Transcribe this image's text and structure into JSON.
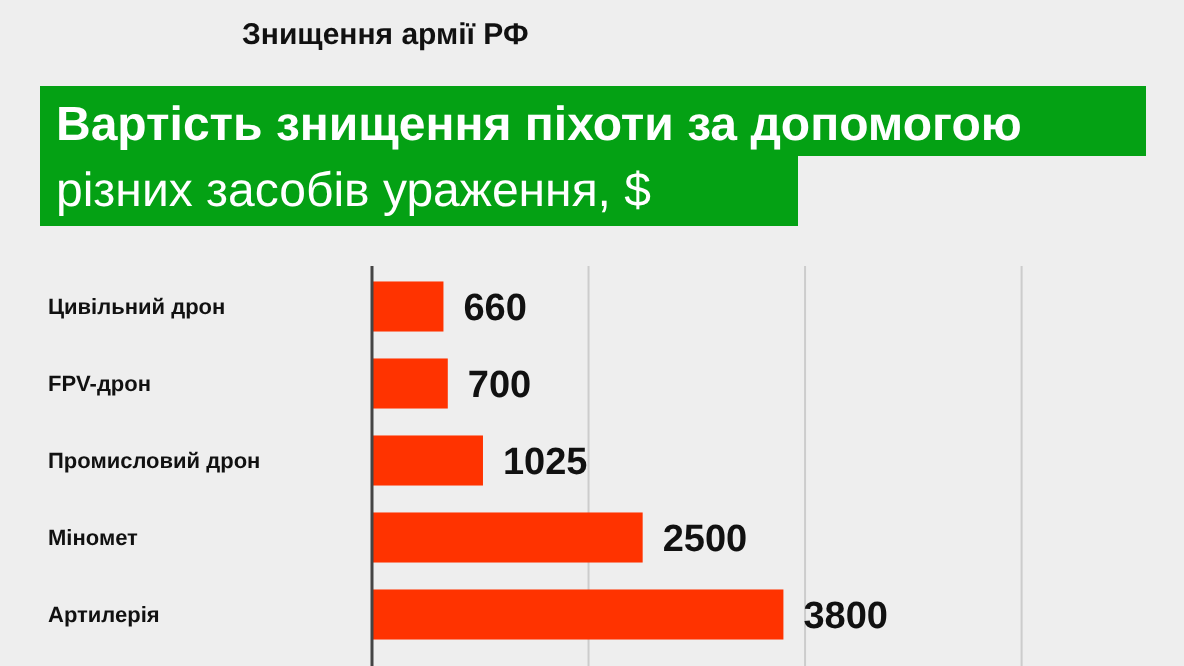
{
  "chart_data": {
    "type": "bar",
    "orientation": "horizontal",
    "subtitle": "Знищення армії РФ",
    "title": "Вартість знищення піхоти за допомогою\nрізних засобів ураження, $",
    "categories": [
      "Цивільний дрон",
      "FPV-дрон",
      "Промисловий дрон",
      "Міномет",
      "Артилерія"
    ],
    "values": [
      660,
      700,
      1025,
      2500,
      3800
    ],
    "color": "#ff3300",
    "data_labels": true,
    "xlim": [
      0,
      7500
    ],
    "xticks": [
      {
        "value": 0,
        "label": null
      },
      {
        "value": 2000,
        "label": null
      },
      {
        "value": 4000,
        "label": null
      },
      {
        "value": 6000,
        "label": null
      }
    ],
    "grid": "x",
    "tick_labels": "y"
  }
}
